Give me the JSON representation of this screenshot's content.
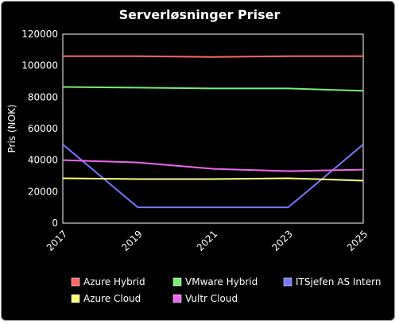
{
  "chart_data": {
    "type": "line",
    "title": "Serverløsninger Priser",
    "xlabel": "",
    "ylabel": "Pris (NOK)",
    "categories": [
      "2017",
      "2019",
      "2021",
      "2023",
      "2025"
    ],
    "ylim": [
      0,
      120000
    ],
    "yticks": [
      0,
      20000,
      40000,
      60000,
      80000,
      100000,
      120000
    ],
    "grid": false,
    "legend_position": "bottom",
    "series": [
      {
        "name": "Azure Hybrid",
        "color": "#ff6666",
        "values": [
          106000,
          106000,
          105500,
          106000,
          106000
        ]
      },
      {
        "name": "VMware Hybrid",
        "color": "#77ee77",
        "values": [
          86500,
          86000,
          85500,
          85500,
          84000
        ]
      },
      {
        "name": "ITSjefen AS Intern",
        "color": "#7777ff",
        "values": [
          50000,
          10000,
          10000,
          10000,
          50000
        ]
      },
      {
        "name": "Azure Cloud",
        "color": "#ffff77",
        "values": [
          28500,
          28000,
          28000,
          28500,
          27000
        ]
      },
      {
        "name": "Vultr Cloud",
        "color": "#ee66ee",
        "values": [
          40000,
          38500,
          34500,
          33000,
          34000
        ]
      }
    ]
  }
}
